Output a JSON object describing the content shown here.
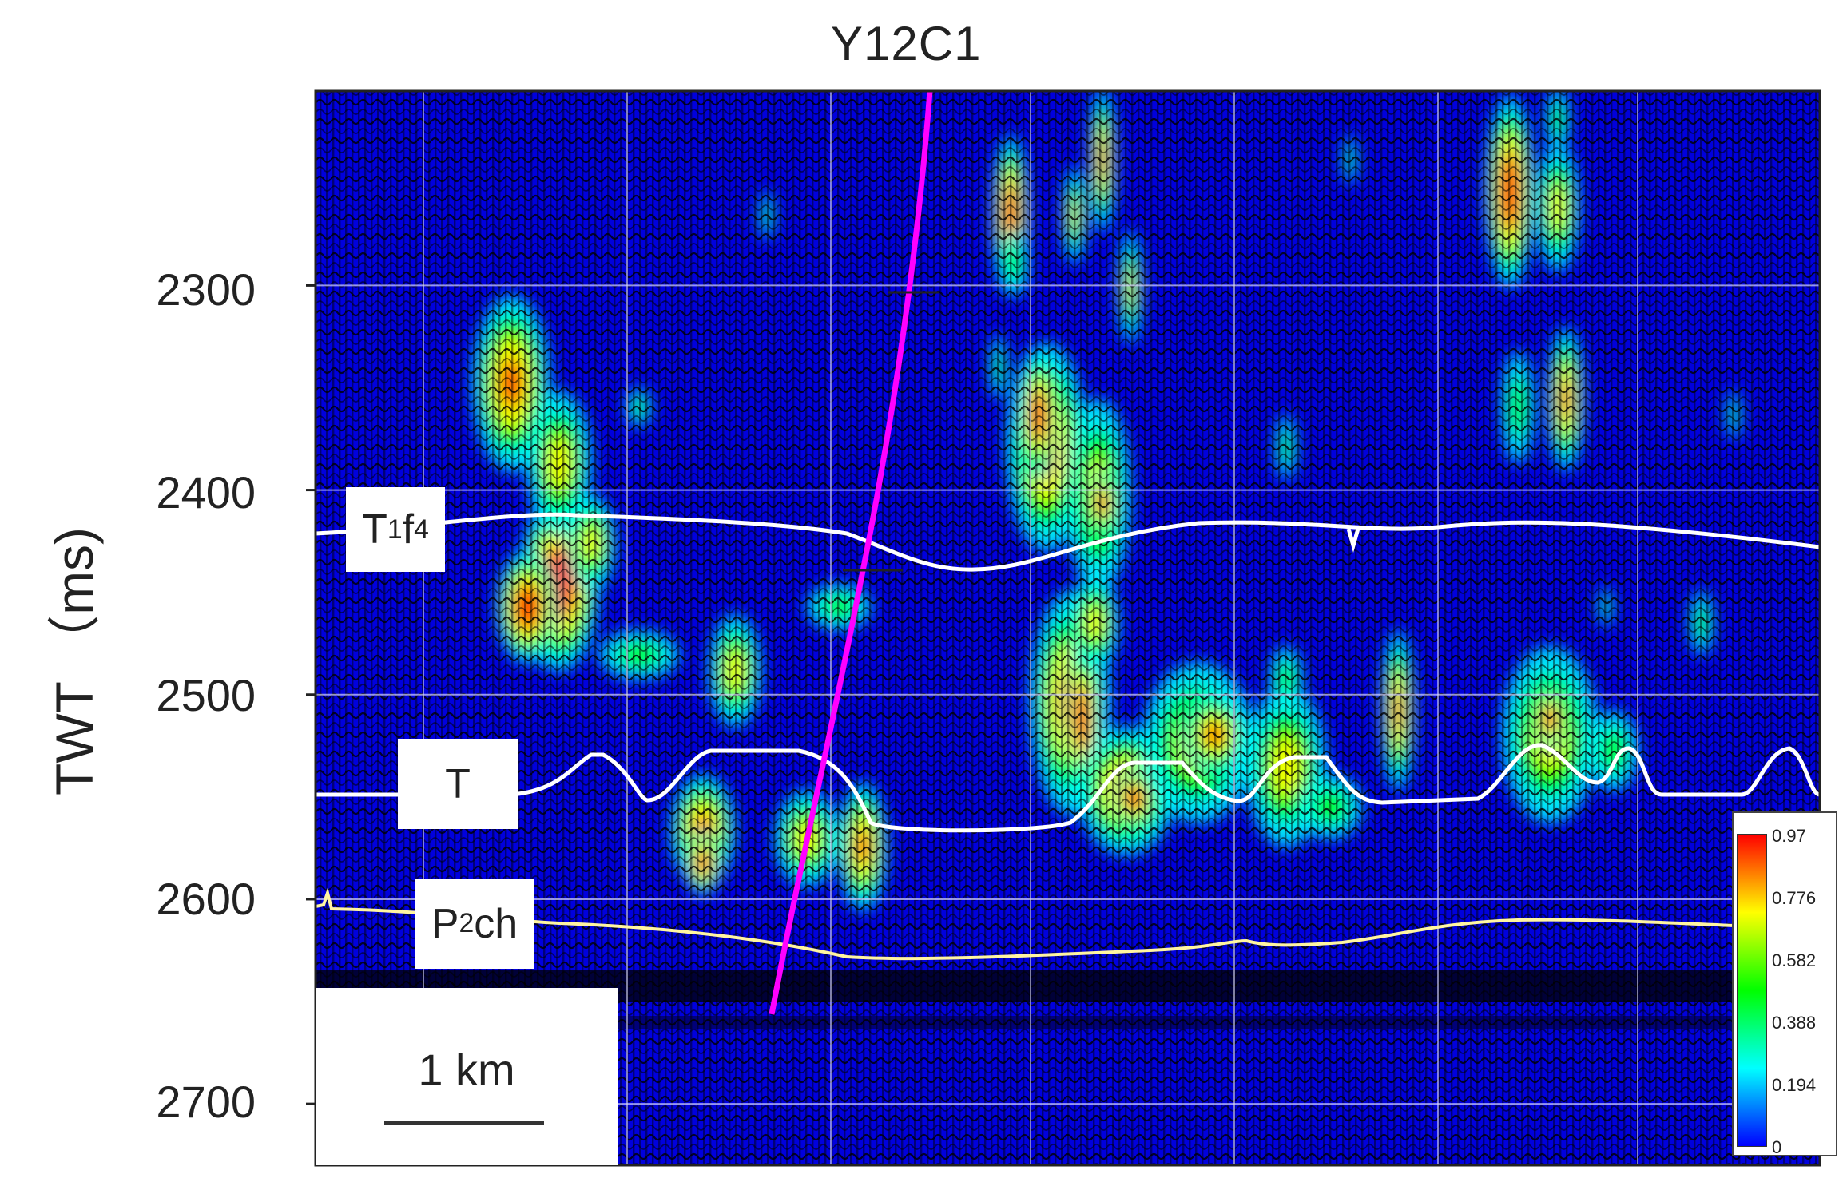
{
  "title": "Y12C1",
  "y_axis": {
    "label": "TWT （ms)",
    "ticks": [
      "2300",
      "2400",
      "2500",
      "2600",
      "2700"
    ],
    "range_ms": [
      2205,
      2730
    ]
  },
  "horizons": [
    {
      "id": "t1f4",
      "main": "T",
      "sub": "1",
      "tail": "f",
      "sup": "4",
      "color": "#ffffff",
      "approx_twt_ms": 2415
    },
    {
      "id": "t",
      "main": "T",
      "sub": "",
      "tail": "",
      "sup": "",
      "color": "#ffffff",
      "approx_twt_ms": 2550
    },
    {
      "id": "p2ch",
      "main": "P",
      "sub": "2",
      "tail": "ch",
      "sup": "",
      "color": "#fff5a0",
      "approx_twt_ms": 2615
    }
  ],
  "scale_bar": {
    "label": "1 km"
  },
  "colorbar": {
    "ticks": [
      "0.97",
      "0.776",
      "0.582",
      "0.388",
      "0.194",
      "0"
    ],
    "min": 0,
    "max": 0.97,
    "colors": [
      "#0000ff",
      "#00ffff",
      "#00ff00",
      "#ffff00",
      "#ff0000"
    ]
  },
  "well_trajectory_color": "#ff00ff",
  "background_color": "#0000dd"
}
